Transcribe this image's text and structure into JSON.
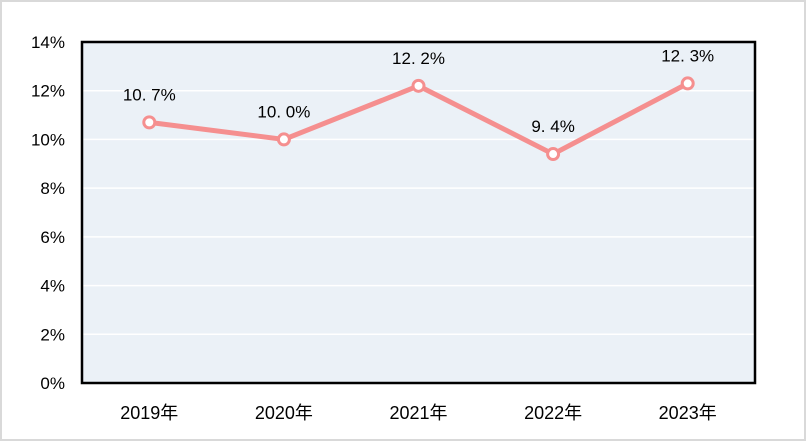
{
  "chart_data": {
    "type": "line",
    "categories": [
      "2019年",
      "2020年",
      "2021年",
      "2022年",
      "2023年"
    ],
    "values": [
      10.7,
      10.0,
      12.2,
      9.4,
      12.3
    ],
    "data_labels": [
      "10. 7%",
      "10. 0%",
      "12. 2%",
      "9. 4%",
      "12. 3%"
    ],
    "ylim": [
      0,
      14
    ],
    "ytick_step": 2,
    "ytick_labels": [
      "0%",
      "2%",
      "4%",
      "6%",
      "8%",
      "10%",
      "12%",
      "14%"
    ],
    "grid": true,
    "legend": "none",
    "colors": {
      "line": "#f58f8f",
      "marker_fill": "#ffffff",
      "plot_background": "#ebf1f7",
      "gridline": "#ffffff",
      "plot_border": "#000000",
      "text": "#000000",
      "frame_border": "#d9d9d9"
    }
  }
}
